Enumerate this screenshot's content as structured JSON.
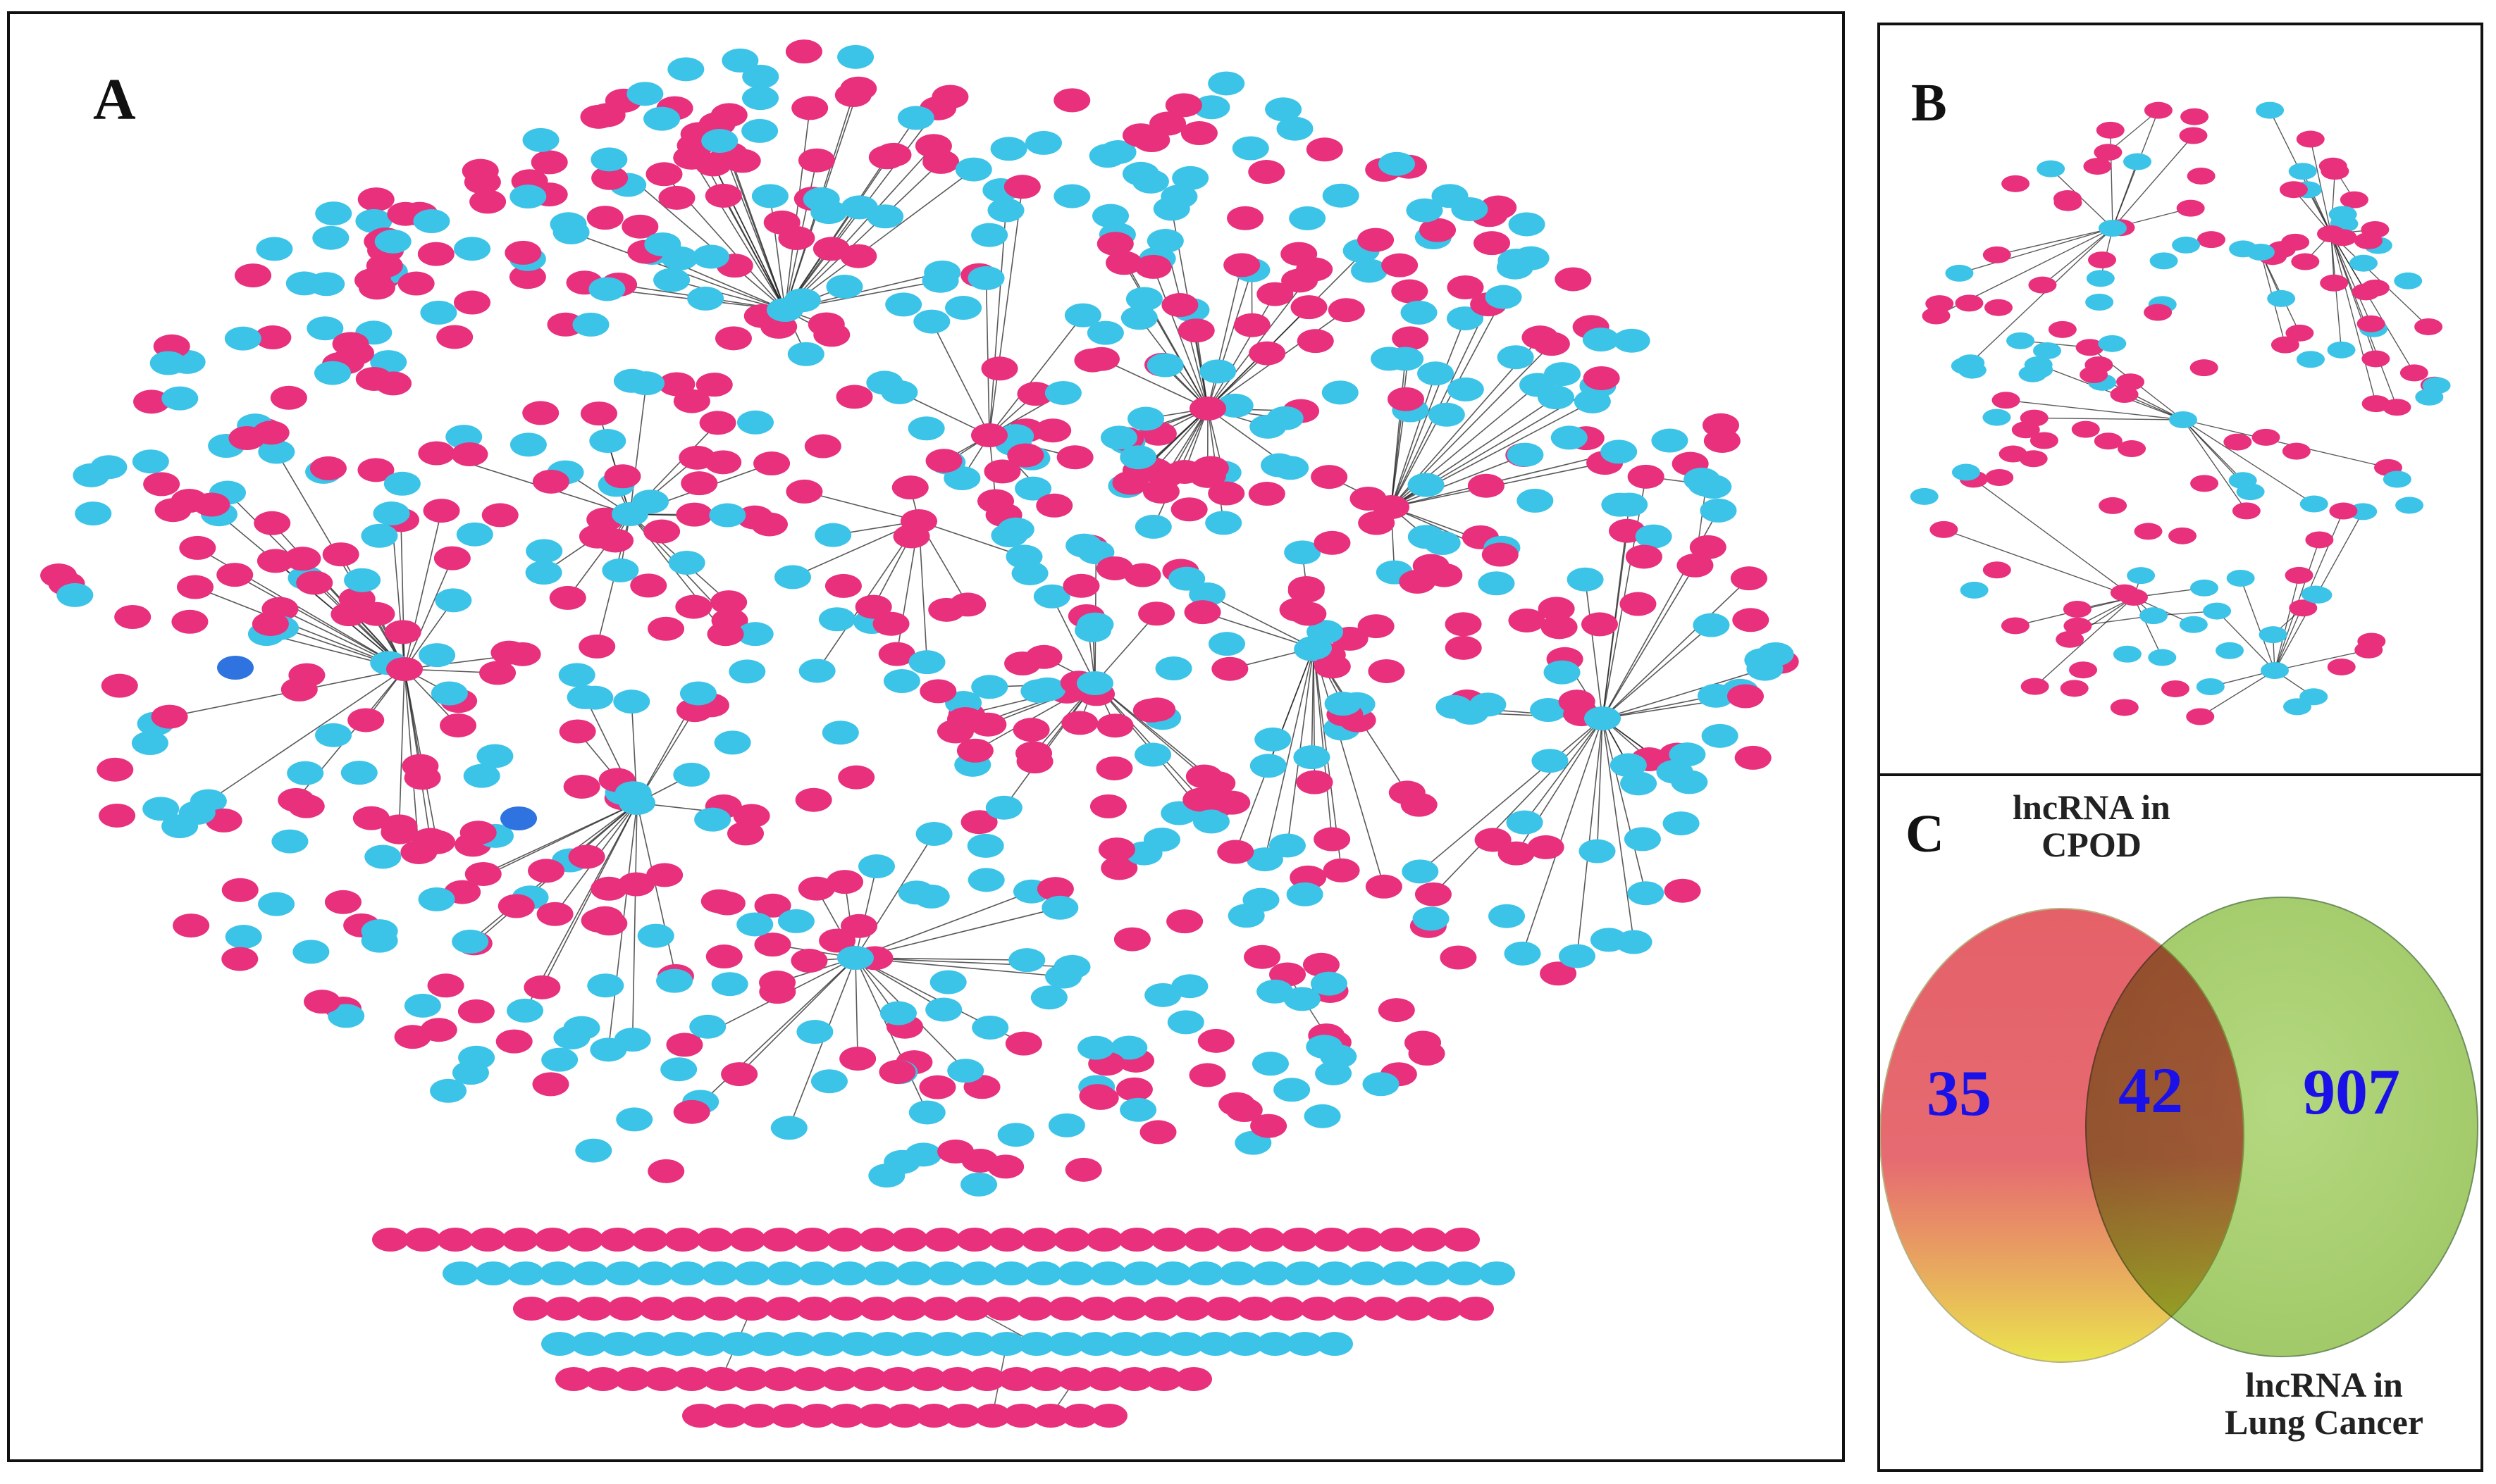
{
  "panels": {
    "a": {
      "letter": "A"
    },
    "b": {
      "letter": "B"
    },
    "c": {
      "letter": "C"
    }
  },
  "colors": {
    "node_lncrna": "#e8307c",
    "node_gene": "#3cc3e8",
    "node_highlight": "#2f73e0",
    "edge": "#222222",
    "venn_left": "#e0454e",
    "venn_left_bottom": "#e8e23a",
    "venn_right": "#9ccc5a",
    "venn_number": "#1a10e8"
  },
  "venn": {
    "left_set_title": "lncRNA in CPOD",
    "left_set_title_lines": [
      "lncRNA in",
      "CPOD"
    ],
    "right_set_title": "lncRNA in Lung Cancer",
    "right_set_title_lines": [
      "lncRNA in",
      "Lung Cancer"
    ],
    "left_only_count": "35",
    "overlap_count": "42",
    "right_only_count": "907"
  }
}
